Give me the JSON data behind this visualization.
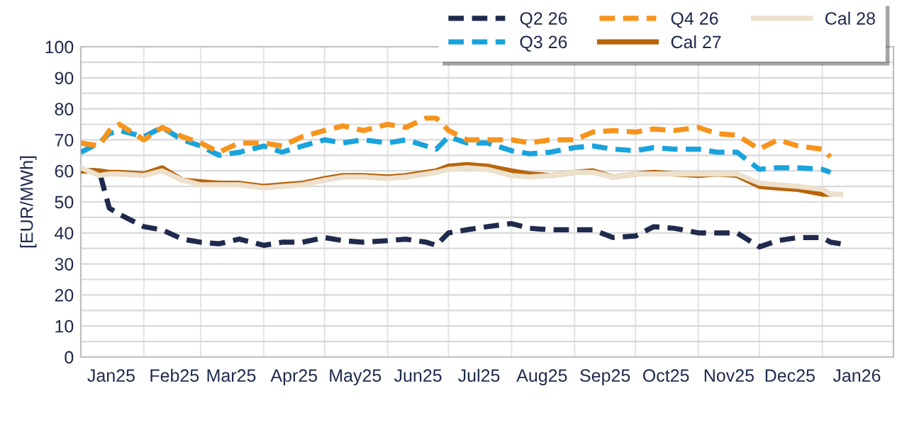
{
  "chart_data": {
    "type": "line",
    "ylabel": "[EUR/MWh]",
    "x": [
      "2025-01-01",
      "2025-01-10",
      "2025-01-15",
      "2025-01-20",
      "2025-02-01",
      "2025-02-10",
      "2025-02-20",
      "2025-03-01",
      "2025-03-10",
      "2025-03-20",
      "2025-04-01",
      "2025-04-10",
      "2025-04-20",
      "2025-05-01",
      "2025-05-10",
      "2025-05-20",
      "2025-06-01",
      "2025-06-10",
      "2025-06-20",
      "2025-06-25",
      "2025-07-01",
      "2025-07-10",
      "2025-07-20",
      "2025-08-01",
      "2025-08-10",
      "2025-08-20",
      "2025-09-01",
      "2025-09-10",
      "2025-09-20",
      "2025-10-01",
      "2025-10-10",
      "2025-10-20",
      "2025-11-01",
      "2025-11-10",
      "2025-11-20",
      "2025-12-01",
      "2025-12-10",
      "2025-12-20",
      "2026-01-01",
      "2026-01-05",
      "2026-01-10"
    ],
    "series": [
      {
        "name": "Q2 26",
        "color": "#1f2a4d",
        "line_style": "dashed",
        "values": [
          60,
          60,
          48,
          46,
          42,
          41,
          38,
          37,
          36.5,
          38,
          36,
          37,
          37,
          38.5,
          37.5,
          37,
          37.5,
          38,
          37,
          36,
          40,
          41,
          42,
          43,
          41.5,
          41,
          41,
          41,
          38.5,
          39,
          42,
          41.5,
          40,
          40,
          40,
          35.5,
          37.5,
          38.5,
          38.5,
          37,
          36.5
        ]
      },
      {
        "name": "Q3 26",
        "color": "#1aa3dc",
        "line_style": "dashed",
        "values": [
          66,
          69,
          72,
          73,
          71,
          74,
          70,
          68,
          65,
          66,
          68,
          66,
          68,
          70,
          69,
          70,
          69,
          70,
          68,
          67,
          71,
          69,
          69,
          66.5,
          65.5,
          66,
          67.5,
          68,
          67,
          66.5,
          67.5,
          67,
          67,
          66,
          66,
          60.5,
          61,
          61,
          60.5,
          59.5,
          null
        ]
      },
      {
        "name": "Q4 26",
        "color": "#f7941d",
        "line_style": "dashed",
        "values": [
          69,
          68,
          73,
          75,
          70,
          74,
          71,
          69,
          66,
          69,
          69,
          68,
          71,
          73,
          74.5,
          73,
          75,
          74,
          77,
          77,
          73,
          70,
          70,
          70,
          69,
          70,
          70,
          72.5,
          73,
          72.5,
          73.5,
          73,
          74,
          72,
          71.5,
          67,
          70,
          68,
          67,
          64.5,
          null
        ]
      },
      {
        "name": "Cal 27",
        "color": "#b8660a",
        "line_style": "solid",
        "values": [
          60,
          60,
          59.5,
          59.5,
          59,
          61,
          57,
          56.5,
          56,
          56,
          55,
          55.5,
          56,
          57.5,
          58.5,
          58.5,
          58,
          58.5,
          59.5,
          60,
          61.5,
          62,
          61.5,
          60,
          59,
          58.5,
          59.5,
          60,
          58,
          59,
          59.5,
          59,
          58.5,
          59,
          58.5,
          55,
          54.5,
          54,
          52.5,
          52.5,
          null
        ]
      },
      {
        "name": "Cal 28",
        "color": "#ede0cc",
        "line_style": "solid",
        "values": [
          61,
          58.5,
          59,
          59,
          58.5,
          60,
          57,
          55.5,
          55.5,
          55.5,
          54.5,
          55,
          55.5,
          57,
          58,
          58,
          57.5,
          58,
          59,
          59.5,
          60.5,
          61,
          60.5,
          58.5,
          58,
          58.5,
          59.5,
          59.5,
          58,
          59,
          59,
          59,
          59,
          59,
          59,
          56,
          55.5,
          55,
          54,
          52.5,
          52.5
        ]
      }
    ],
    "xlim": [
      "2025-01-01",
      "2026-02-05"
    ],
    "xticks": [
      {
        "value": "2025-01-16",
        "label": "Jan25"
      },
      {
        "value": "2025-02-01",
        "label": null
      },
      {
        "value": "2025-02-16",
        "label": "Feb25"
      },
      {
        "value": "2025-03-01",
        "label": null
      },
      {
        "value": "2025-03-16",
        "label": "Mar25"
      },
      {
        "value": "2025-04-01",
        "label": null
      },
      {
        "value": "2025-04-16",
        "label": "Apr25"
      },
      {
        "value": "2025-05-01",
        "label": null
      },
      {
        "value": "2025-05-16",
        "label": "May25"
      },
      {
        "value": "2025-06-01",
        "label": null
      },
      {
        "value": "2025-06-16",
        "label": "Jun25"
      },
      {
        "value": "2025-07-01",
        "label": null
      },
      {
        "value": "2025-07-16",
        "label": "Jul25"
      },
      {
        "value": "2025-08-01",
        "label": null
      },
      {
        "value": "2025-08-16",
        "label": "Aug25"
      },
      {
        "value": "2025-09-01",
        "label": null
      },
      {
        "value": "2025-09-16",
        "label": "Sep25"
      },
      {
        "value": "2025-10-01",
        "label": null
      },
      {
        "value": "2025-10-16",
        "label": "Oct25"
      },
      {
        "value": "2025-11-01",
        "label": null
      },
      {
        "value": "2025-11-16",
        "label": "Nov25"
      },
      {
        "value": "2025-12-01",
        "label": null
      },
      {
        "value": "2025-12-16",
        "label": "Dec25"
      },
      {
        "value": "2026-01-01",
        "label": null
      },
      {
        "value": "2026-01-18",
        "label": "Jan26"
      }
    ],
    "ylim": [
      0,
      100
    ],
    "yticks": [
      0,
      {
        "value": 5,
        "label": null
      },
      10,
      {
        "value": 15,
        "label": null
      },
      20,
      {
        "value": 25,
        "label": null
      },
      30,
      {
        "value": 35,
        "label": null
      },
      40,
      {
        "value": 45,
        "label": null
      },
      50,
      {
        "value": 55,
        "label": null
      },
      60,
      {
        "value": 65,
        "label": null
      },
      70,
      {
        "value": 75,
        "label": null
      },
      80,
      {
        "value": 85,
        "label": null
      },
      90,
      {
        "value": 95,
        "label": null
      },
      100
    ],
    "grid": true,
    "legend": "top right",
    "marker": "none"
  }
}
